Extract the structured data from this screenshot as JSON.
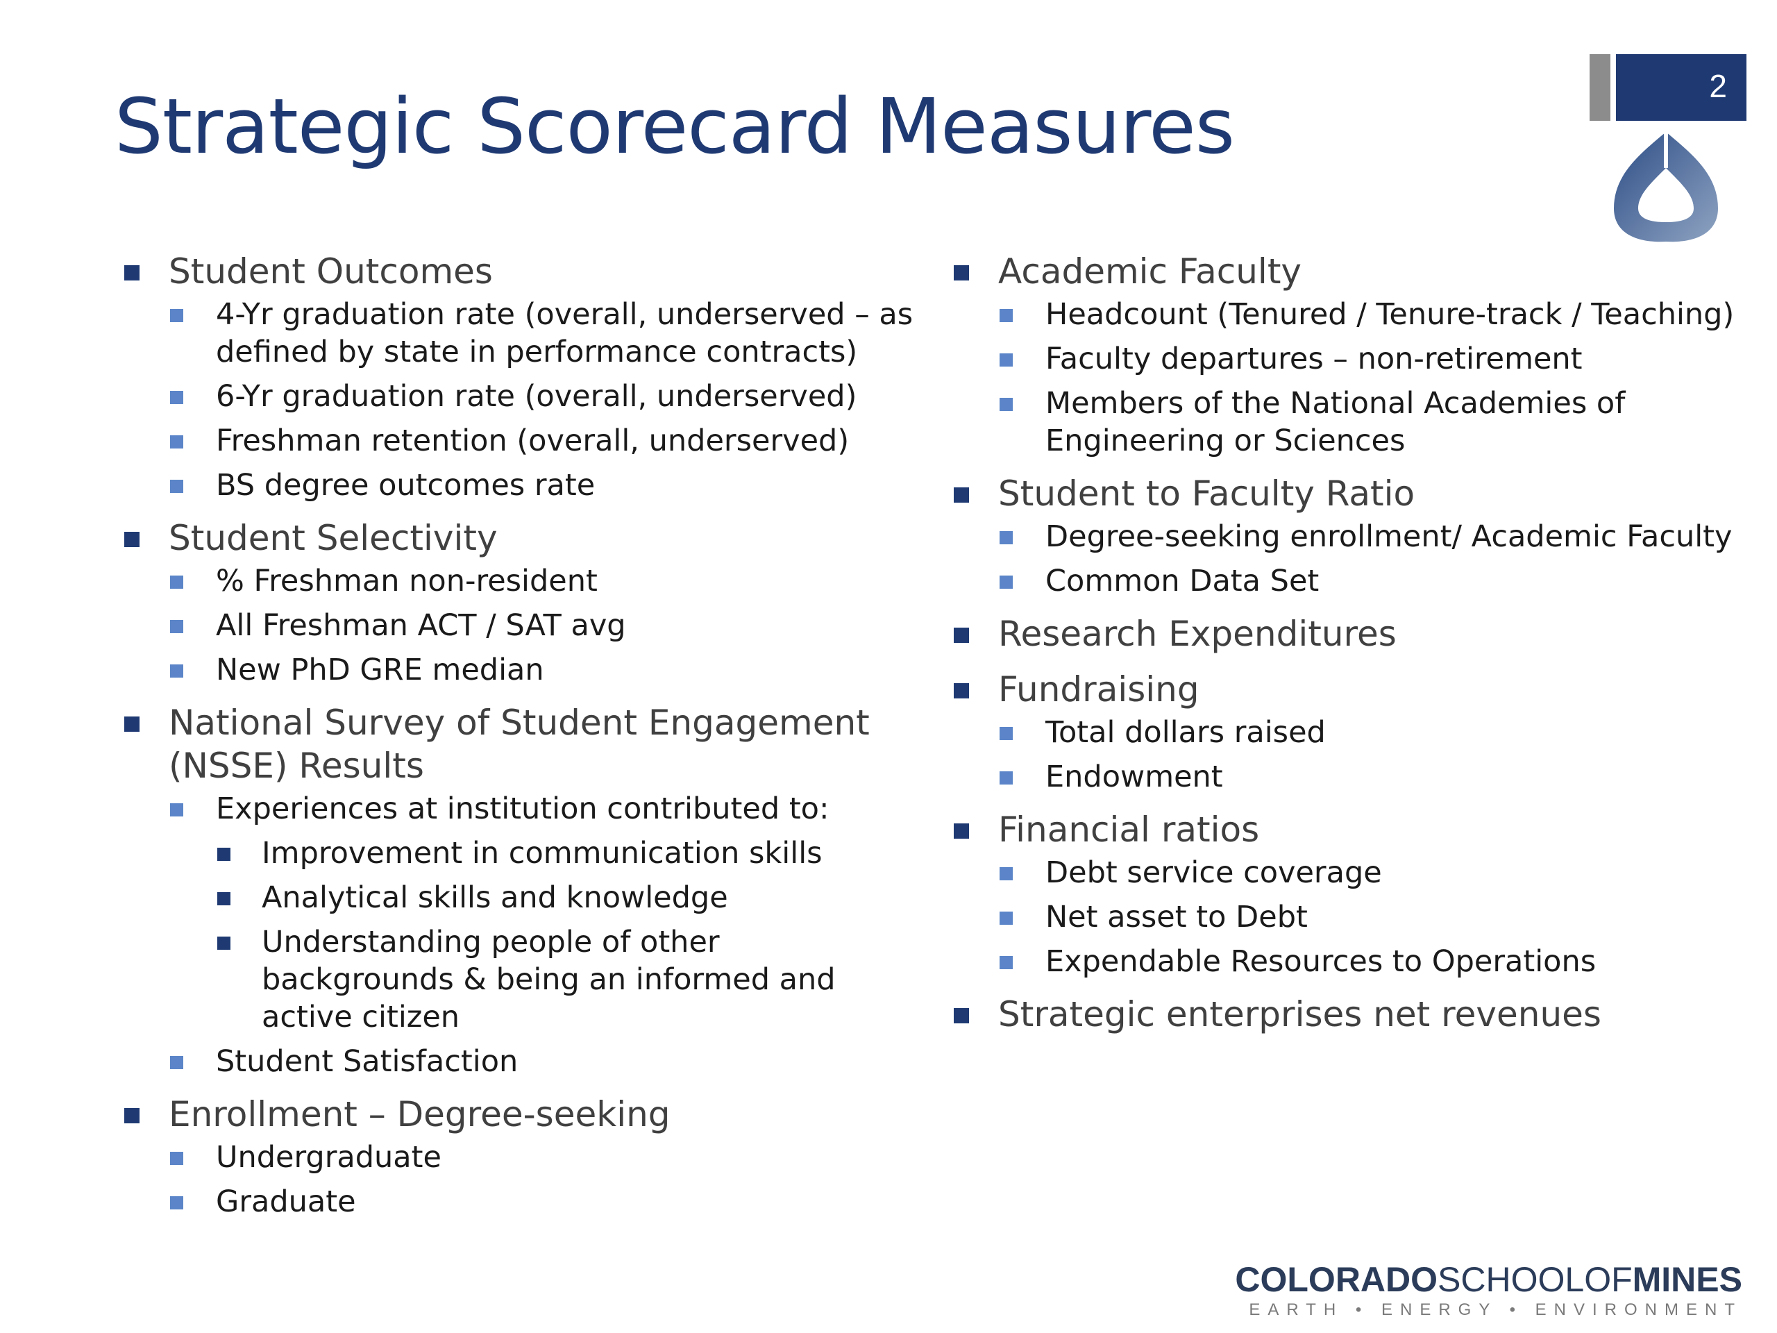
{
  "slide": {
    "title": "Strategic Scorecard Measures",
    "page_number": "2"
  },
  "left_column": [
    {
      "label": "Student Outcomes",
      "items": [
        {
          "label": "4-Yr graduation rate (overall, underserved – as defined by state in performance contracts)"
        },
        {
          "label": "6-Yr graduation rate (overall, underserved)"
        },
        {
          "label": "Freshman retention (overall, underserved)"
        },
        {
          "label": "BS degree outcomes rate"
        }
      ]
    },
    {
      "label": "Student Selectivity",
      "items": [
        {
          "label": "% Freshman non-resident"
        },
        {
          "label": "All Freshman ACT / SAT avg"
        },
        {
          "label": "New PhD GRE median"
        }
      ]
    },
    {
      "label": "National Survey of Student Engagement (NSSE) Results",
      "items": [
        {
          "label": "Experiences at institution contributed to:",
          "items": [
            {
              "label": "Improvement in communication skills"
            },
            {
              "label": "Analytical skills and knowledge"
            },
            {
              "label": "Understanding people of other backgrounds & being an informed and active citizen"
            }
          ]
        },
        {
          "label": "Student Satisfaction"
        }
      ]
    },
    {
      "label": "Enrollment – Degree-seeking",
      "items": [
        {
          "label": "Undergraduate"
        },
        {
          "label": "Graduate"
        }
      ]
    }
  ],
  "right_column": [
    {
      "label": "Academic Faculty",
      "items": [
        {
          "label": "Headcount (Tenured / Tenure-track / Teaching)"
        },
        {
          "label": "Faculty departures – non-retirement"
        },
        {
          "label": "Members of the National Academies of Engineering or Sciences"
        }
      ]
    },
    {
      "label": "Student to Faculty Ratio",
      "items": [
        {
          "label": "Degree-seeking enrollment/ Academic Faculty"
        },
        {
          "label": "Common Data Set"
        }
      ]
    },
    {
      "label": "Research Expenditures",
      "items": []
    },
    {
      "label": "Fundraising",
      "items": [
        {
          "label": "Total dollars raised"
        },
        {
          "label": "Endowment"
        }
      ]
    },
    {
      "label": "Financial ratios",
      "items": [
        {
          "label": "Debt service coverage"
        },
        {
          "label": "Net asset to Debt"
        },
        {
          "label": "Expendable Resources to Operations"
        }
      ]
    },
    {
      "label": "Strategic enterprises net revenues",
      "items": []
    }
  ],
  "footer": {
    "name_part1": "COLORADO",
    "name_part2": "SCHOOLOF",
    "name_part3": "MINES",
    "tagline": "EARTH • ENERGY • ENVIRONMENT"
  },
  "colors": {
    "title": "#1f3a73",
    "level1_bullet": "#1f3a73",
    "level2_bullet": "#5b85c8",
    "level3_bullet": "#1f3a73",
    "badge_navy": "#1f3a73",
    "badge_grey": "#8c8c8c"
  },
  "icons": {
    "logo": "mines-triangle-logo-icon"
  }
}
